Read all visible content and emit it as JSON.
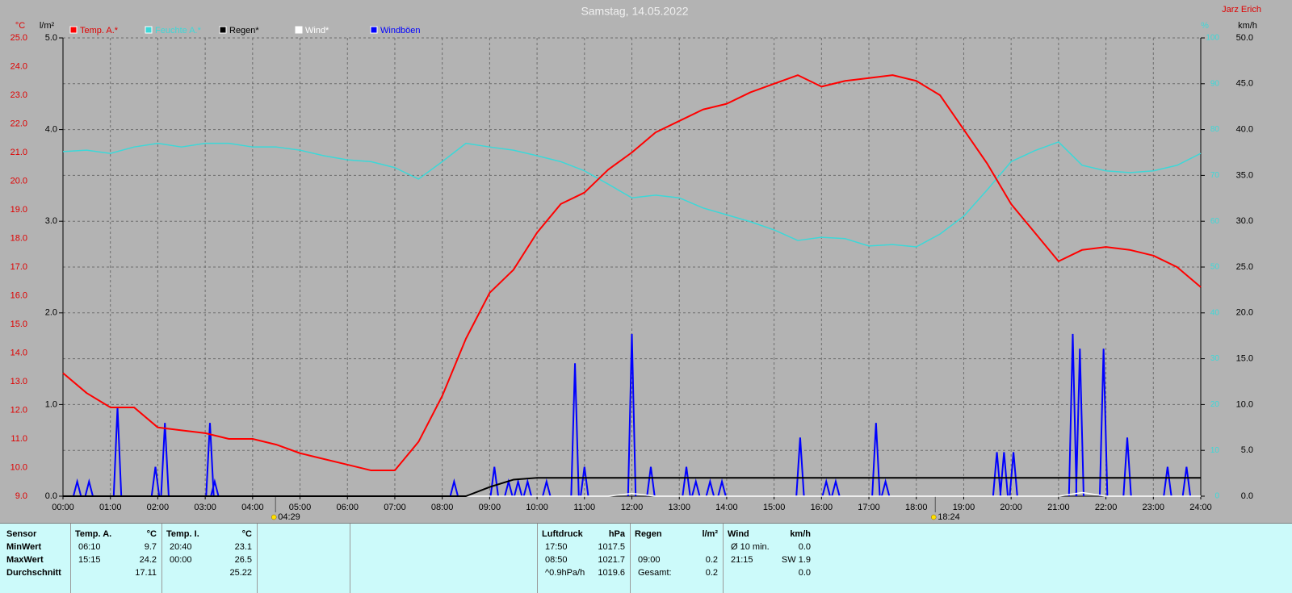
{
  "chart_data": {
    "type": "line",
    "title": "Samstag, 14.05.2022",
    "author": "Jarz Erich",
    "y_label": "°C",
    "y3_label": "l/m²",
    "y2_label": "%",
    "y4_label": "km/h",
    "grid": true,
    "x": [
      0,
      0.5,
      1,
      1.5,
      2,
      2.5,
      3,
      3.5,
      4,
      4.5,
      5,
      5.5,
      6,
      6.5,
      7,
      7.5,
      8,
      8.5,
      9,
      9.5,
      10,
      10.5,
      11,
      11.5,
      12,
      12.5,
      13,
      13.5,
      14,
      14.5,
      15,
      15.5,
      16,
      16.5,
      17,
      17.5,
      18,
      18.5,
      19,
      19.5,
      20,
      20.5,
      21,
      21.5,
      22,
      22.5,
      23,
      23.5,
      24
    ],
    "xlim": [
      0,
      24
    ],
    "xticks": [
      {
        "value": 0,
        "label": "00:00"
      },
      {
        "value": 1,
        "label": "01:00"
      },
      {
        "value": 2,
        "label": "02:00"
      },
      {
        "value": 3,
        "label": "03:00"
      },
      {
        "value": 4,
        "label": "04:00"
      },
      {
        "value": 5,
        "label": "05:00"
      },
      {
        "value": 6,
        "label": "06:00"
      },
      {
        "value": 7,
        "label": "07:00"
      },
      {
        "value": 8,
        "label": "08:00"
      },
      {
        "value": 9,
        "label": "09:00"
      },
      {
        "value": 10,
        "label": "10:00"
      },
      {
        "value": 11,
        "label": "11:00"
      },
      {
        "value": 12,
        "label": "12:00"
      },
      {
        "value": 13,
        "label": "13:00"
      },
      {
        "value": 14,
        "label": "14:00"
      },
      {
        "value": 15,
        "label": "15:00"
      },
      {
        "value": 16,
        "label": "16:00"
      },
      {
        "value": 17,
        "label": "17:00"
      },
      {
        "value": 18,
        "label": "18:00"
      },
      {
        "value": 19,
        "label": "19:00"
      },
      {
        "value": 20,
        "label": "20:00"
      },
      {
        "value": 21,
        "label": "21:00"
      },
      {
        "value": 22,
        "label": "22:00"
      },
      {
        "value": 23,
        "label": "23:00"
      },
      {
        "value": 24,
        "label": "24:00"
      }
    ],
    "ylim": [
      9,
      25
    ],
    "yticks": [
      {
        "value": 9,
        "label": "9.0"
      },
      {
        "value": 10,
        "label": "10.0"
      },
      {
        "value": 11,
        "label": "11.0"
      },
      {
        "value": 12,
        "label": "12.0"
      },
      {
        "value": 13,
        "label": "13.0"
      },
      {
        "value": 14,
        "label": "14.0"
      },
      {
        "value": 15,
        "label": "15.0"
      },
      {
        "value": 16,
        "label": "16.0"
      },
      {
        "value": 17,
        "label": "17.0"
      },
      {
        "value": 18,
        "label": "18.0"
      },
      {
        "value": 19,
        "label": "19.0"
      },
      {
        "value": 20,
        "label": "20.0"
      },
      {
        "value": 21,
        "label": "21.0"
      },
      {
        "value": 22,
        "label": "22.0"
      },
      {
        "value": 23,
        "label": "23.0"
      },
      {
        "value": 24,
        "label": "24.0"
      },
      {
        "value": 25,
        "label": "25.0"
      }
    ],
    "y3lim": [
      0,
      5
    ],
    "y3ticks": [
      {
        "value": 0,
        "label": "0.0"
      },
      {
        "value": 1,
        "label": "1.0"
      },
      {
        "value": 2,
        "label": "2.0"
      },
      {
        "value": 3,
        "label": "3.0"
      },
      {
        "value": 4,
        "label": "4.0"
      },
      {
        "value": 5,
        "label": "5.0"
      }
    ],
    "y2lim": [
      0,
      100
    ],
    "y2ticks": [
      0,
      10,
      20,
      30,
      40,
      50,
      60,
      70,
      80,
      90,
      100
    ],
    "y4lim": [
      0,
      50
    ],
    "y4ticks": [
      {
        "value": 0,
        "label": "0.0"
      },
      {
        "value": 5,
        "label": "5.0"
      },
      {
        "value": 10,
        "label": "10.0"
      },
      {
        "value": 15,
        "label": "15.0"
      },
      {
        "value": 20,
        "label": "20.0"
      },
      {
        "value": 25,
        "label": "25.0"
      },
      {
        "value": 30,
        "label": "30.0"
      },
      {
        "value": 35,
        "label": "35.0"
      },
      {
        "value": 40,
        "label": "40.0"
      },
      {
        "value": 45,
        "label": "45.0"
      },
      {
        "value": 50,
        "label": "50.0"
      }
    ],
    "sunrise": {
      "value": 4.4833,
      "label": "04:29"
    },
    "sunset": {
      "value": 18.4,
      "label": "18:24"
    },
    "series": [
      {
        "name": "Temp. A.*",
        "color": "#ff0000",
        "axis": "y",
        "values": [
          13.3,
          12.6,
          12.1,
          12.1,
          11.4,
          11.3,
          11.2,
          11.0,
          11.0,
          10.8,
          10.5,
          10.3,
          10.1,
          9.9,
          9.9,
          10.9,
          12.5,
          14.5,
          16.1,
          16.9,
          18.2,
          19.2,
          19.6,
          20.4,
          21.0,
          21.7,
          22.1,
          22.5,
          22.7,
          23.1,
          23.4,
          23.7,
          23.3,
          23.5,
          23.6,
          23.7,
          23.5,
          23.0,
          21.8,
          20.6,
          19.2,
          18.2,
          17.2,
          17.6,
          17.7,
          17.6,
          17.4,
          17.0,
          16.3
        ]
      },
      {
        "name": "Feuchte A.*",
        "color": "#3cd8d8",
        "axis": "y2",
        "values": [
          75.2,
          75.5,
          74.8,
          76.2,
          77.0,
          76.2,
          77.0,
          77.0,
          76.2,
          76.2,
          75.5,
          74.3,
          73.4,
          73.0,
          71.7,
          69.2,
          73.0,
          77.0,
          76.2,
          75.5,
          74.3,
          73.0,
          71.0,
          68.1,
          65.1,
          65.7,
          65.1,
          62.9,
          61.4,
          59.9,
          58.1,
          55.8,
          56.5,
          56.2,
          54.6,
          54.9,
          54.4,
          57.2,
          61.1,
          66.9,
          73.0,
          75.4,
          77.3,
          72.2,
          71.0,
          70.6,
          71.0,
          72.2,
          74.8
        ]
      },
      {
        "name": "Regen*",
        "color": "#000000",
        "axis": "y3",
        "values": [
          0,
          0,
          0,
          0,
          0,
          0,
          0,
          0,
          0,
          0,
          0,
          0,
          0,
          0,
          0,
          0,
          0,
          0,
          0.1,
          0.18,
          0.2,
          0.2,
          0.2,
          0.2,
          0.2,
          0.2,
          0.2,
          0.2,
          0.2,
          0.2,
          0.2,
          0.2,
          0.2,
          0.2,
          0.2,
          0.2,
          0.2,
          0.2,
          0.2,
          0.2,
          0.2,
          0.2,
          0.2,
          0.2,
          0.2,
          0.2,
          0.2,
          0.2,
          0.2
        ]
      },
      {
        "name": "Wind*",
        "color": "#ffffff",
        "axis": "y4",
        "values": [
          0,
          0,
          0,
          0,
          0,
          0,
          0,
          0,
          0,
          0,
          0,
          0,
          0,
          0,
          0,
          0,
          0,
          0,
          0,
          0,
          0,
          0,
          0,
          0,
          0.3,
          0,
          0,
          0,
          0,
          0,
          0,
          0,
          0,
          0,
          0,
          0,
          0,
          0,
          0,
          0,
          0,
          0,
          0,
          0.4,
          0,
          0,
          0,
          0,
          0
        ]
      },
      {
        "name": "Windböen",
        "color": "#0000ff",
        "axis": "y4",
        "x": [
          0.3,
          0.55,
          1.15,
          1.95,
          2.15,
          3.1,
          3.2,
          8.25,
          9.1,
          9.4,
          9.6,
          9.8,
          10.2,
          10.8,
          11.0,
          12.0,
          12.4,
          13.15,
          13.35,
          13.65,
          13.9,
          15.55,
          16.1,
          16.3,
          17.15,
          17.35,
          19.7,
          19.85,
          20.05,
          21.3,
          21.45,
          21.95,
          22.45,
          23.3,
          23.7
        ],
        "values": [
          1.6,
          1.6,
          9.7,
          3.2,
          8.0,
          8.0,
          1.6,
          1.6,
          3.2,
          1.6,
          1.6,
          1.6,
          1.6,
          14.5,
          3.2,
          17.7,
          3.2,
          3.2,
          1.6,
          1.6,
          1.6,
          6.4,
          1.6,
          1.6,
          8.0,
          1.6,
          4.8,
          4.8,
          4.8,
          17.7,
          16.1,
          16.1,
          6.4,
          3.2,
          3.2
        ]
      }
    ]
  },
  "stats_table": {
    "sensor": {
      "header": "Sensor",
      "rows": [
        "MinWert",
        "MaxWert",
        "Durchschnitt"
      ]
    },
    "sections": [
      {
        "header": [
          "Temp. A.",
          "°C"
        ],
        "rows": [
          [
            "06:10",
            "9.7"
          ],
          [
            "15:15",
            "24.2"
          ],
          [
            null,
            "17.11"
          ]
        ]
      },
      {
        "header": [
          "Temp. I.",
          "°C"
        ],
        "rows": [
          [
            "20:40",
            "23.1"
          ],
          [
            "00:00",
            "26.5"
          ],
          [
            null,
            "25.22"
          ]
        ]
      },
      {
        "header": [
          "Luftdruck",
          "hPa"
        ],
        "rows": [
          [
            "17:50",
            "1017.5"
          ],
          [
            "08:50",
            "1021.7"
          ],
          [
            "^0.9hPa/h",
            "1019.6"
          ]
        ]
      },
      {
        "header": [
          "Regen",
          "l/m²"
        ],
        "rows": [
          [
            null,
            null
          ],
          [
            "09:00",
            "0.2"
          ],
          [
            "Gesamt:",
            "0.2"
          ]
        ]
      },
      {
        "header": [
          "Wind",
          "km/h"
        ],
        "rows": [
          [
            "Ø 10 min.",
            "0.0"
          ],
          [
            "21:15",
            "SW 1.9"
          ],
          [
            null,
            "0.0"
          ]
        ]
      }
    ]
  }
}
